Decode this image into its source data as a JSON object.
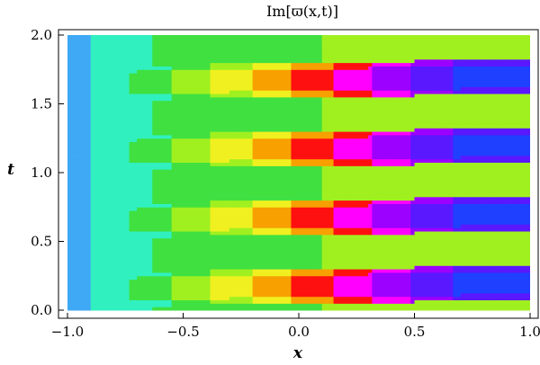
{
  "chart_data": {
    "type": "contour",
    "title": "Im[ϖ(x,t)]",
    "xlabel": "x",
    "ylabel": "t",
    "xlim": [
      -1.0,
      1.0
    ],
    "ylim": [
      0.0,
      2.0
    ],
    "x_ticks": [
      "-1.0",
      "-0.5",
      "0.0",
      "0.5",
      "1.0"
    ],
    "y_ticks": [
      "0.0",
      "0.5",
      "1.0",
      "1.5",
      "2.0"
    ],
    "t_period": 0.5,
    "t_band_centers": [
      0.15,
      0.62,
      1.12,
      1.61
    ],
    "contour_levels_colors": [
      "#3fa9f5",
      "#30f0c0",
      "#40e040",
      "#a0f020",
      "#f0f020",
      "#f7a000",
      "#ff1010",
      "#ff00ff",
      "#9c00ff",
      "#5a18ff",
      "#2040ff"
    ],
    "grid": false,
    "legend": "none"
  }
}
